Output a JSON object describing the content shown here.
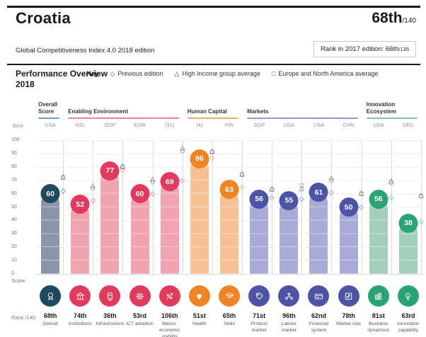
{
  "header": {
    "country": "Croatia",
    "rank": "68th",
    "rank_total": "/140",
    "edition": "Global Competitiveness Index 4.0 2018 edition",
    "prev_rank": "Rank in 2017 edition: 66th",
    "prev_rank_total": "/135"
  },
  "overview": {
    "title_line1": "Performance Overview",
    "title_line2": "2018",
    "key_label": "Key",
    "key": [
      {
        "symbol": "◇",
        "label": "Previous edition"
      },
      {
        "symbol": "△",
        "label": "High income group average"
      },
      {
        "symbol": "□",
        "label": "Europe and North America average"
      }
    ]
  },
  "axis_labels": {
    "best_label": "Best",
    "score_label": "Score",
    "rank_label": "Rank /140"
  },
  "chart_data": {
    "type": "bar",
    "title": "Performance Overview 2018",
    "ylabel": "Score",
    "ylim": [
      0,
      100
    ],
    "y_ticks": [
      100,
      90,
      80,
      70,
      60,
      50,
      40,
      30,
      20,
      10,
      0
    ],
    "legend": [
      "Previous edition",
      "High income group average",
      "Europe and North America average"
    ],
    "groups": [
      {
        "name": "Overall Score",
        "span": [
          0,
          0
        ],
        "color": "#1d4a5f",
        "bar_color": "#8b96a9",
        "underline": "#6d9fc1"
      },
      {
        "name": "Enabling Environment",
        "span": [
          1,
          4
        ],
        "color": "#e23a5c",
        "bar_color": "#f1a4b0",
        "underline": "#ee8093"
      },
      {
        "name": "Human Capital",
        "span": [
          5,
          6
        ],
        "color": "#ee8426",
        "bar_color": "#f6c294",
        "underline": "#f3aa64"
      },
      {
        "name": "Markets",
        "span": [
          7,
          10
        ],
        "color": "#4d54a6",
        "bar_color": "#a9abd6",
        "underline": "#979dc9"
      },
      {
        "name": "Innovation Ecosystem",
        "span": [
          11,
          12
        ],
        "color": "#2aa376",
        "bar_color": "#a3cfba",
        "underline": "#83c4a9"
      }
    ],
    "pillars": [
      {
        "label": "Overall",
        "best": "USA",
        "value": 60,
        "rank": "68th",
        "group": 0,
        "icon": "medal-icon",
        "previous_edition": 62,
        "high_income_avg": 73,
        "europe_na_avg": 72
      },
      {
        "label": "Institutions",
        "best": "NZL",
        "value": 52,
        "rank": "74th",
        "group": 1,
        "icon": "bank-icon",
        "previous_edition": 55,
        "high_income_avg": 66,
        "europe_na_avg": 64
      },
      {
        "label": "Infrastructure",
        "best": "SGP",
        "value": 77,
        "rank": "36th",
        "group": 1,
        "icon": "train-icon",
        "previous_edition": 78,
        "high_income_avg": 81,
        "europe_na_avg": 80
      },
      {
        "label": "ICT adoption",
        "best": "KOR",
        "value": 60,
        "rank": "53rd",
        "group": 1,
        "icon": "chip-icon",
        "previous_edition": 60,
        "high_income_avg": 71,
        "europe_na_avg": 69
      },
      {
        "label": "Macro-economic stability",
        "best": "(31)",
        "value": 69,
        "rank": "106th",
        "group": 1,
        "icon": "percent-arrow-icon",
        "previous_edition": 70,
        "high_income_avg": 94,
        "europe_na_avg": 92
      },
      {
        "label": "Health",
        "best": "(4)",
        "value": 86,
        "rank": "51st",
        "group": 2,
        "icon": "heart-icon",
        "previous_edition": 87,
        "high_income_avg": 92,
        "europe_na_avg": 91
      },
      {
        "label": "Skills",
        "best": "FIN",
        "value": 63,
        "rank": "65th",
        "group": 2,
        "icon": "graduate-icon",
        "previous_edition": 65,
        "high_income_avg": 75,
        "europe_na_avg": 74
      },
      {
        "label": "Product market",
        "best": "SGP",
        "value": 56,
        "rank": "71st",
        "group": 3,
        "icon": "tag-icon",
        "previous_edition": 57,
        "high_income_avg": 64,
        "europe_na_avg": 63
      },
      {
        "label": "Labour market",
        "best": "USA",
        "value": 55,
        "rank": "96th",
        "group": 3,
        "icon": "people-network-icon",
        "previous_edition": 56,
        "high_income_avg": 64,
        "europe_na_avg": 66
      },
      {
        "label": "Financial system",
        "best": "USA",
        "value": 61,
        "rank": "62nd",
        "group": 3,
        "icon": "credit-card-icon",
        "previous_edition": 61,
        "high_income_avg": 72,
        "europe_na_avg": 70
      },
      {
        "label": "Market size",
        "best": "CHN",
        "value": 50,
        "rank": "78th",
        "group": 3,
        "icon": "expand-icon",
        "previous_edition": 50,
        "high_income_avg": 61,
        "europe_na_avg": 60
      },
      {
        "label": "Business dynamism",
        "best": "USA",
        "value": 56,
        "rank": "81st",
        "group": 4,
        "icon": "buildings-icon",
        "previous_edition": 57,
        "high_income_avg": 70,
        "europe_na_avg": 68
      },
      {
        "label": "Innovation capability",
        "best": "DEU",
        "value": 38,
        "rank": "63rd",
        "group": 4,
        "icon": "lightbulb-icon",
        "previous_edition": 39,
        "high_income_avg": 59,
        "europe_na_avg": 58
      }
    ]
  }
}
